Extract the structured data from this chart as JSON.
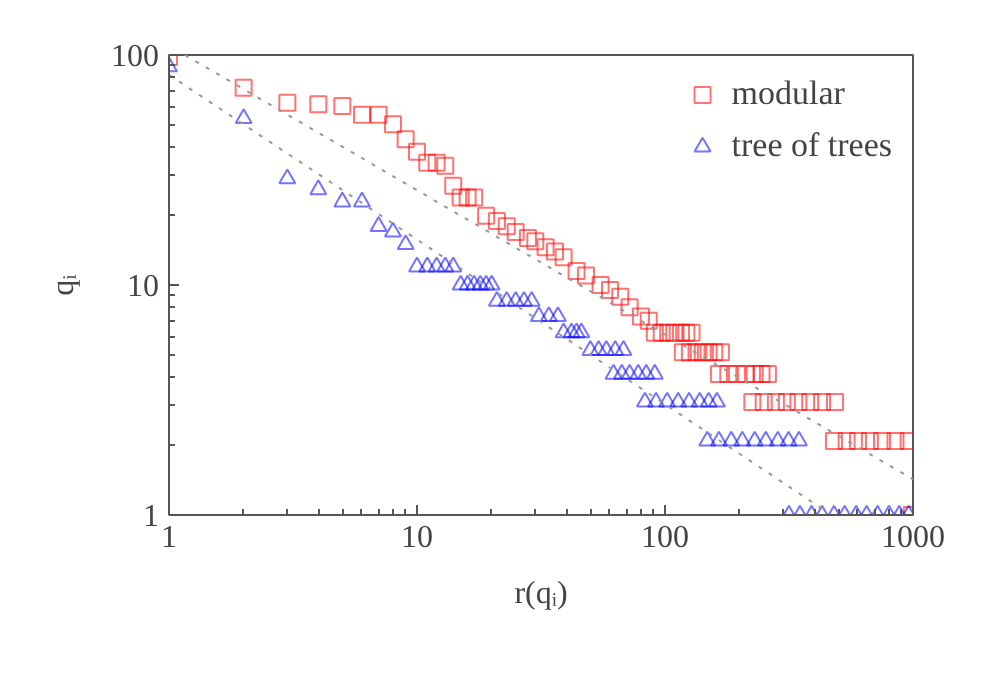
{
  "chart_data": {
    "type": "scatter",
    "xlabel": "r(qᵢ)",
    "ylabel": "qᵢ",
    "log": "xy",
    "xlim": [
      1,
      1000
    ],
    "ylim": [
      1,
      100
    ],
    "xticks": [
      1,
      10,
      100,
      1000
    ],
    "yticks": [
      1,
      10,
      100
    ],
    "grid": false,
    "legend": "top right",
    "series": [
      {
        "name": "modular",
        "color": "#ff0000",
        "marker": "square",
        "x": [
          1,
          2,
          3,
          4,
          5,
          6,
          7,
          8,
          9,
          10,
          11,
          12,
          13,
          14,
          15,
          16,
          17,
          19,
          21,
          23,
          25,
          28,
          30,
          33,
          36,
          39,
          44,
          48,
          55,
          60,
          66,
          72,
          80,
          86,
          91,
          97,
          103,
          109,
          116,
          122,
          128,
          118,
          126,
          134,
          142,
          150,
          158,
          168,
          165,
          180,
          195,
          212,
          230,
          245,
          260,
          225,
          250,
          280,
          310,
          345,
          385,
          430,
          485,
          480,
          540,
          600,
          670,
          750,
          850,
          960,
          990
        ],
        "values": [
          98,
          72,
          62,
          61,
          60,
          55,
          55,
          50,
          43,
          38,
          34,
          34,
          33,
          27,
          24,
          24,
          24,
          20,
          19,
          18,
          17,
          16,
          15.5,
          14.6,
          14,
          13.2,
          11.5,
          11,
          10,
          9.5,
          8.9,
          8,
          7.3,
          7,
          6.2,
          6.2,
          6.2,
          6.2,
          6.2,
          6.2,
          6.2,
          5.1,
          5.1,
          5.1,
          5.1,
          5.1,
          5.1,
          5.1,
          4.1,
          4.1,
          4.1,
          4.1,
          4.1,
          4.1,
          4.1,
          3.1,
          3.1,
          3.1,
          3.1,
          3.1,
          3.1,
          3.1,
          3.1,
          2.1,
          2.1,
          2.1,
          2.1,
          2.1,
          2.1,
          2.1,
          1
        ]
      },
      {
        "name": "tree of trees",
        "color": "#0000ff",
        "marker": "triangle",
        "x": [
          1,
          2,
          3,
          4,
          5,
          6,
          7,
          8,
          9,
          10,
          11,
          12,
          13,
          14,
          15,
          16,
          17,
          18,
          19,
          20,
          21,
          23,
          25,
          27,
          29,
          31,
          34,
          37,
          39,
          42,
          44,
          46,
          50,
          54,
          58,
          63,
          68,
          62,
          67,
          72,
          78,
          84,
          91,
          83,
          92,
          102,
          113,
          125,
          138,
          150,
          162,
          148,
          165,
          185,
          205,
          230,
          255,
          285,
          315,
          347,
          316,
          350,
          390,
          430,
          480,
          530,
          590,
          650,
          720,
          800,
          880,
          960
        ],
        "values": [
          89,
          53,
          29,
          26,
          23,
          23,
          18,
          17,
          15,
          12,
          12,
          12,
          12,
          12,
          10,
          10,
          10,
          10,
          10,
          10,
          8.5,
          8.5,
          8.5,
          8.5,
          8.5,
          7.3,
          7.3,
          7.3,
          6.2,
          6.2,
          6.2,
          6.2,
          5.2,
          5.2,
          5.2,
          5.2,
          5.2,
          4.1,
          4.1,
          4.1,
          4.1,
          4.1,
          4.1,
          3.1,
          3.1,
          3.1,
          3.1,
          3.1,
          3.1,
          3.1,
          3.1,
          2.1,
          2.1,
          2.1,
          2.1,
          2.1,
          2.1,
          2.1,
          2.1,
          2.1,
          1,
          1,
          1,
          1,
          1,
          1,
          1,
          1,
          1,
          1,
          1,
          1
        ]
      },
      {
        "type": "line",
        "color": "#999999",
        "line_style": "dotted",
        "x": [
          1.16,
          1000
        ],
        "values": [
          100,
          1.43
        ]
      },
      {
        "type": "line",
        "color": "#999999",
        "line_style": "dotted",
        "x": [
          1,
          470
        ],
        "values": [
          82,
          1
        ]
      }
    ]
  }
}
